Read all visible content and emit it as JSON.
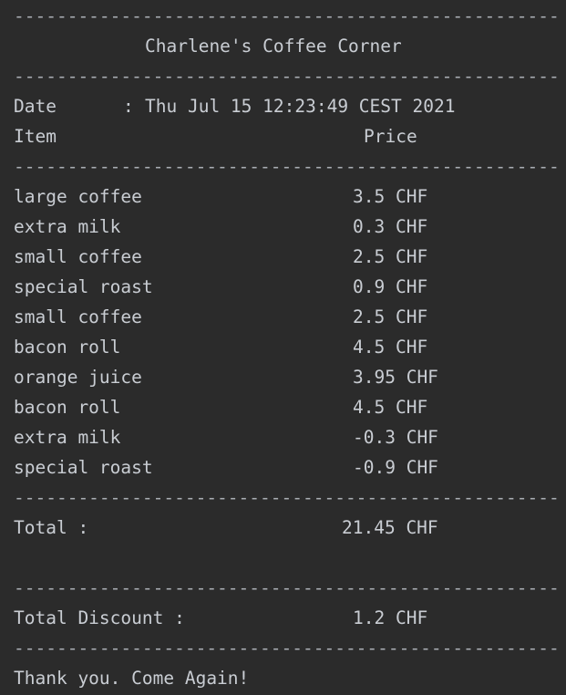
{
  "receipt": {
    "separator": "--------------------------------------------------------------------",
    "title": "Charlene's Coffee Corner",
    "date_label": "Date",
    "date_colon": ":",
    "date_value": "Thu Jul 15 12:23:49 CEST 2021",
    "item_header": "Item",
    "price_header": "Price",
    "items": [
      {
        "name": "large coffee",
        "price": "3.5 CHF"
      },
      {
        "name": "extra milk",
        "price": "0.3 CHF"
      },
      {
        "name": "small coffee",
        "price": "2.5 CHF"
      },
      {
        "name": "special roast",
        "price": "0.9 CHF"
      },
      {
        "name": "small coffee",
        "price": "2.5 CHF"
      },
      {
        "name": "bacon roll",
        "price": "4.5 CHF"
      },
      {
        "name": "orange juice",
        "price": "3.95 CHF"
      },
      {
        "name": "bacon roll",
        "price": "4.5 CHF"
      },
      {
        "name": "extra milk",
        "price": "-0.3 CHF"
      },
      {
        "name": "special roast",
        "price": "-0.9 CHF"
      }
    ],
    "total_label": "Total :",
    "total_value": "21.45 CHF",
    "discount_label": "Total Discount :",
    "discount_value": "1.2 CHF",
    "footer": "Thank you. Come Again!"
  }
}
